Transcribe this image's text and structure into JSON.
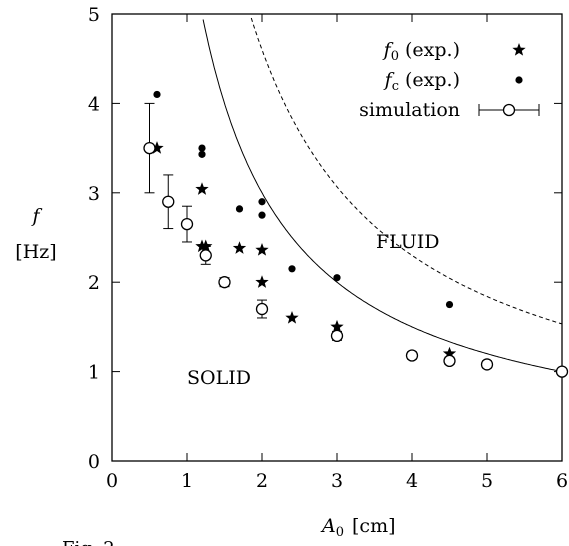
{
  "chart_data": {
    "type": "scatter",
    "xlabel": {
      "symbol": "A",
      "sub": "0",
      "unit": "[cm]"
    },
    "ylabel": {
      "symbol": "f",
      "unit": "[Hz]"
    },
    "xlim": [
      0,
      6
    ],
    "ylim": [
      0,
      5
    ],
    "xticks": [
      0,
      1,
      2,
      3,
      4,
      5,
      6
    ],
    "yticks": [
      0,
      1,
      2,
      3,
      4,
      5
    ],
    "region_labels": {
      "fluid": "FLUID",
      "solid": "SOLID"
    },
    "caption_fragment": "Fig. 2",
    "legend_position": "top-right",
    "legend": [
      {
        "symbol": "f",
        "sub": "0",
        "text": "(exp.)",
        "marker": "star"
      },
      {
        "symbol": "f",
        "sub": "c",
        "text": "(exp.)",
        "marker": "dot"
      },
      {
        "text": "simulation",
        "marker": "circle-errorbar"
      }
    ],
    "series": [
      {
        "name": "f0 (exp.)",
        "marker": "star",
        "x": [
          0.6,
          1.2,
          1.2,
          1.25,
          1.7,
          2.0,
          2.0,
          2.4,
          3.0,
          4.5
        ],
        "y": [
          3.5,
          3.04,
          2.4,
          2.4,
          2.38,
          2.36,
          2.0,
          1.6,
          1.5,
          1.2
        ]
      },
      {
        "name": "fc (exp.)",
        "marker": "dot",
        "x": [
          0.6,
          1.2,
          1.2,
          1.7,
          2.0,
          2.0,
          2.4,
          3.0,
          4.5
        ],
        "y": [
          4.1,
          3.5,
          3.43,
          2.82,
          2.9,
          2.75,
          2.15,
          2.05,
          1.75
        ]
      },
      {
        "name": "simulation",
        "marker": "circle-errorbar",
        "x": [
          0.5,
          0.75,
          1.0,
          1.25,
          1.5,
          2.0,
          3.0,
          4.0,
          4.5,
          5.0,
          6.0
        ],
        "y": [
          3.5,
          2.9,
          2.65,
          2.3,
          2.0,
          1.7,
          1.4,
          1.18,
          1.12,
          1.08,
          1.0
        ],
        "yerr": [
          0.5,
          0.3,
          0.2,
          0.1,
          0.05,
          0.1,
          0.05,
          0.04,
          0.04,
          0.04,
          0.03
        ]
      }
    ],
    "curves": [
      {
        "name": "solid-fit",
        "style": "solid",
        "a": 6.0,
        "p": 1.0,
        "from": 0.5,
        "to": 6.0
      },
      {
        "name": "boundary",
        "style": "dashed",
        "a": 9.2,
        "p": 1.0,
        "from": 0.5,
        "to": 6.0
      }
    ]
  }
}
